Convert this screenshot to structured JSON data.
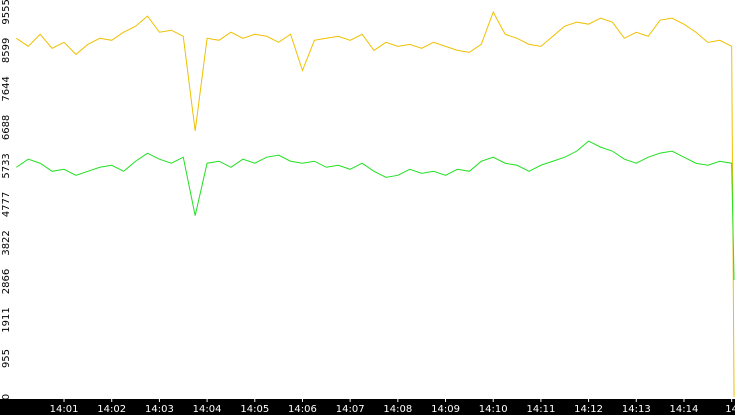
{
  "chart_data": {
    "type": "line",
    "x": [
      0,
      0.25,
      0.5,
      0.75,
      1,
      1.25,
      1.5,
      1.75,
      2,
      2.25,
      2.5,
      2.75,
      3,
      3.25,
      3.5,
      3.75,
      4,
      4.25,
      4.5,
      4.75,
      5,
      5.25,
      5.5,
      5.75,
      6,
      6.25,
      6.5,
      6.75,
      7,
      7.25,
      7.5,
      7.75,
      8,
      8.25,
      8.5,
      8.75,
      9,
      9.25,
      9.5,
      9.75,
      10,
      10.25,
      10.5,
      10.75,
      11,
      11.25,
      11.5,
      11.75,
      12,
      12.25,
      12.5,
      12.75,
      13,
      13.25,
      13.5,
      13.75,
      14,
      14.25,
      14.5,
      14.75,
      15,
      15.05
    ],
    "series": [
      {
        "color": "#f0c000",
        "values": [
          8900,
          8700,
          9000,
          8650,
          8800,
          8500,
          8750,
          8900,
          8850,
          9050,
          9200,
          9450,
          9050,
          9100,
          8950,
          6600,
          8900,
          8850,
          9050,
          8900,
          9000,
          8950,
          8800,
          9000,
          8100,
          8850,
          8900,
          8950,
          8850,
          9000,
          8600,
          8800,
          8700,
          8750,
          8650,
          8800,
          8700,
          8600,
          8550,
          8750,
          9550,
          9000,
          8900,
          8750,
          8700,
          8950,
          9200,
          9300,
          9250,
          9400,
          9300,
          8900,
          9050,
          8950,
          9350,
          9400,
          9250,
          9050,
          8800,
          8850,
          8700,
          0
        ]
      },
      {
        "color": "#22e022",
        "values": [
          5700,
          5900,
          5800,
          5600,
          5650,
          5500,
          5600,
          5700,
          5750,
          5600,
          5850,
          6050,
          5900,
          5800,
          5950,
          4500,
          5800,
          5850,
          5700,
          5900,
          5800,
          5950,
          6000,
          5850,
          5800,
          5850,
          5700,
          5750,
          5650,
          5800,
          5600,
          5450,
          5500,
          5650,
          5550,
          5600,
          5500,
          5650,
          5600,
          5850,
          5950,
          5800,
          5750,
          5600,
          5750,
          5850,
          5950,
          6100,
          6350,
          6200,
          6100,
          5900,
          5800,
          5950,
          6050,
          6100,
          5950,
          5800,
          5750,
          5850,
          5800,
          2900
        ]
      }
    ],
    "xlim": [
      -0.07,
      15.07
    ],
    "xticks": [
      {
        "value": 1,
        "label": "14:01"
      },
      {
        "value": 2,
        "label": "14:02"
      },
      {
        "value": 3,
        "label": "14:03"
      },
      {
        "value": 4,
        "label": "14:04"
      },
      {
        "value": 5,
        "label": "14:05"
      },
      {
        "value": 6,
        "label": "14:06"
      },
      {
        "value": 7,
        "label": "14:07"
      },
      {
        "value": 8,
        "label": "14:08"
      },
      {
        "value": 9,
        "label": "14:09"
      },
      {
        "value": 10,
        "label": "14:10"
      },
      {
        "value": 11,
        "label": "14:11"
      },
      {
        "value": 12,
        "label": "14:12"
      },
      {
        "value": 13,
        "label": "14:13"
      },
      {
        "value": 14,
        "label": "14:14"
      },
      {
        "value": 15,
        "label": "14"
      }
    ],
    "ylim": [
      0,
      9850
    ],
    "yticks": [
      0,
      955,
      1911,
      2866,
      3822,
      4777,
      5733,
      6688,
      7644,
      8599,
      9555
    ],
    "grid": false
  }
}
